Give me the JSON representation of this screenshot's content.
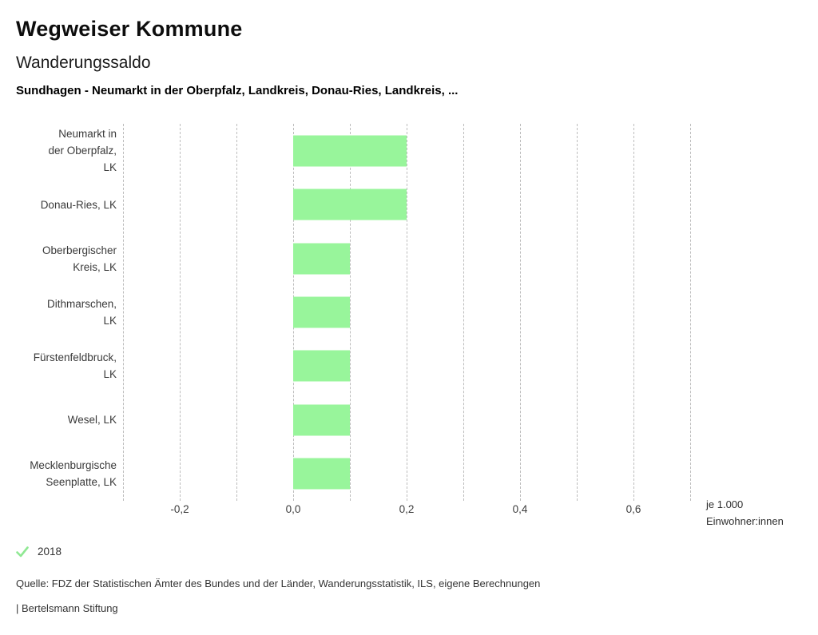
{
  "header": {
    "title": "Wegweiser Kommune",
    "subtitle": "Wanderungssaldo",
    "series_line": "Sundhagen - Neumarkt in der Oberpfalz, Landkreis, Donau-Ries, Landkreis, ..."
  },
  "chart_data": {
    "type": "bar",
    "orientation": "horizontal",
    "title": "Wanderungssaldo",
    "categories": [
      "Neumarkt in der Oberpfalz, LK",
      "Donau-Ries, LK",
      "Oberbergischer Kreis, LK",
      "Dithmarschen, LK",
      "Fürstenfeldbruck, LK",
      "Wesel, LK",
      "Mecklenburgische Seenplatte, LK"
    ],
    "category_lines": [
      [
        "Neumarkt in",
        "der Oberpfalz,",
        "LK"
      ],
      [
        "Donau-Ries, LK"
      ],
      [
        "Oberbergischer",
        "Kreis, LK"
      ],
      [
        "Dithmarschen,",
        "LK"
      ],
      [
        "Fürstenfeldbruck,",
        "LK"
      ],
      [
        "Wesel, LK"
      ],
      [
        "Mecklenburgische",
        "Seenplatte, LK"
      ]
    ],
    "series": [
      {
        "name": "2018",
        "values": [
          0.2,
          0.2,
          0.1,
          0.1,
          0.1,
          0.1,
          0.1
        ]
      }
    ],
    "xlabel": "je 1.000 Einwohner:innen",
    "unit_label_lines": [
      "je 1.000",
      "Einwohner:innen"
    ],
    "xlim": [
      -0.3,
      0.7
    ],
    "grid": true,
    "grid_step": 0.1,
    "x_ticks": [
      {
        "value": -0.2,
        "label": "-0,2"
      },
      {
        "value": 0.0,
        "label": "0,0"
      },
      {
        "value": 0.2,
        "label": "0,2"
      },
      {
        "value": 0.4,
        "label": "0,4"
      },
      {
        "value": 0.6,
        "label": "0,6"
      }
    ],
    "bar_color": "#98F59B",
    "gridline_color": "#bcbcbc",
    "legend_position": "bottom-left"
  },
  "legend": {
    "items": [
      {
        "label": "2018",
        "marker": "check-icon",
        "color": "#8FE893"
      }
    ]
  },
  "footer": {
    "source": "Quelle: FDZ der Statistischen Ämter des Bundes und der Länder, Wanderungsstatistik, ILS, eigene Berechnungen",
    "branding": "| Bertelsmann Stiftung"
  }
}
